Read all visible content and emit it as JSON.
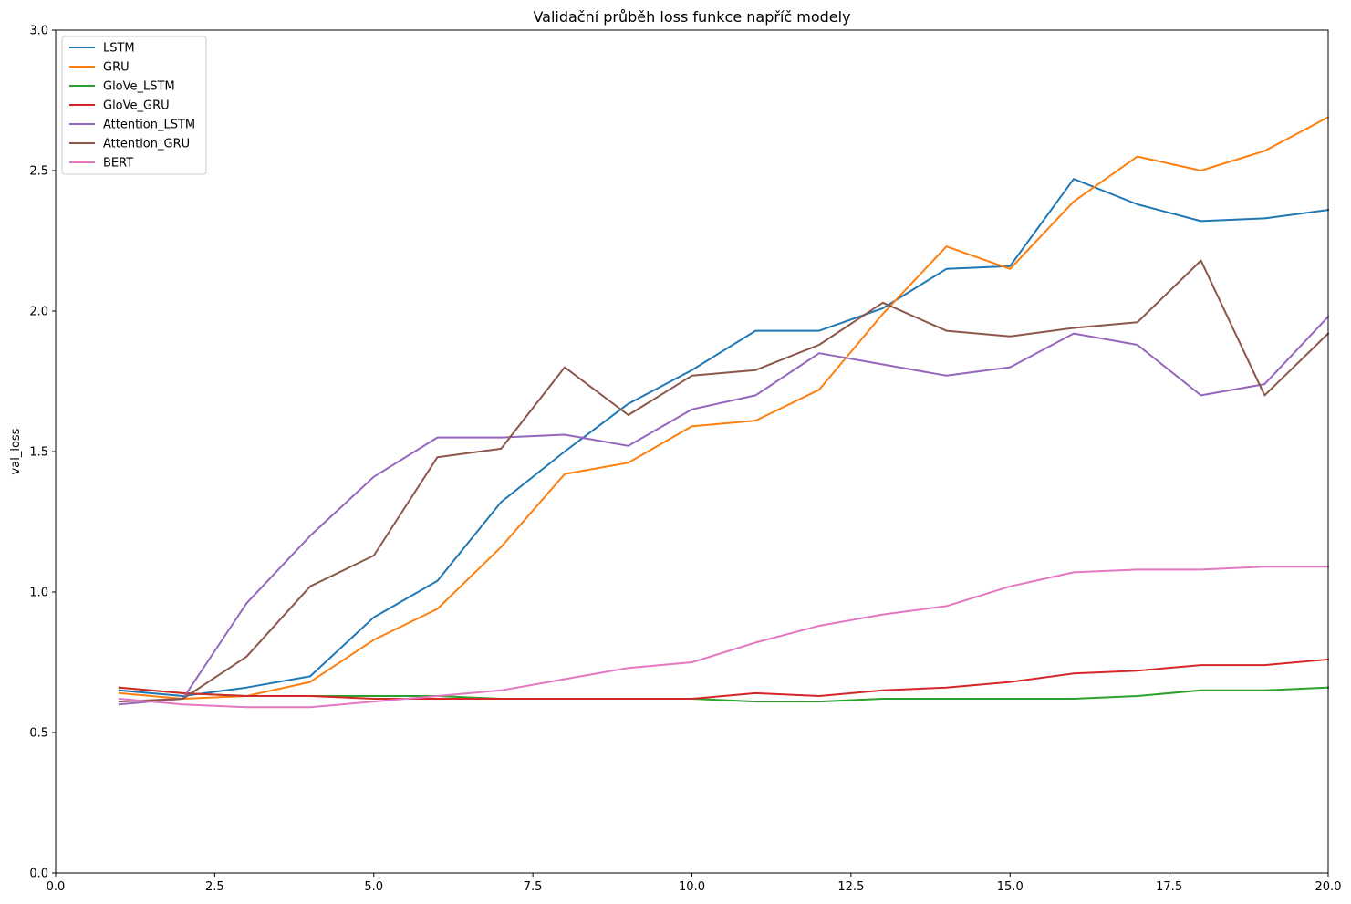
{
  "chart_data": {
    "type": "line",
    "title": "Validační průběh loss funkce napříč modely",
    "xlabel": "",
    "ylabel": "val_loss",
    "xlim": [
      0,
      20
    ],
    "ylim": [
      0,
      3
    ],
    "xticks": [
      {
        "value": 0,
        "label": "0.0"
      },
      {
        "value": 2.5,
        "label": "2.5"
      },
      {
        "value": 5,
        "label": "5.0"
      },
      {
        "value": 7.5,
        "label": "7.5"
      },
      {
        "value": 10,
        "label": "10.0"
      },
      {
        "value": 12.5,
        "label": "12.5"
      },
      {
        "value": 15,
        "label": "15.0"
      },
      {
        "value": 17.5,
        "label": "17.5"
      },
      {
        "value": 20,
        "label": "20.0"
      }
    ],
    "yticks": [
      {
        "value": 0,
        "label": "0.0"
      },
      {
        "value": 0.5,
        "label": "0.5"
      },
      {
        "value": 1,
        "label": "1.0"
      },
      {
        "value": 1.5,
        "label": "1.5"
      },
      {
        "value": 2,
        "label": "2.0"
      },
      {
        "value": 2.5,
        "label": "2.5"
      },
      {
        "value": 3,
        "label": "3.0"
      }
    ],
    "grid": false,
    "legend_position": "top-left",
    "x": [
      1,
      2,
      3,
      4,
      5,
      6,
      7,
      8,
      9,
      10,
      11,
      12,
      13,
      14,
      15,
      16,
      17,
      18,
      19,
      20
    ],
    "series": [
      {
        "name": "LSTM",
        "color": "#1f77b4",
        "values": [
          0.65,
          0.63,
          0.66,
          0.7,
          0.91,
          1.04,
          1.32,
          1.5,
          1.67,
          1.79,
          1.93,
          1.93,
          2.01,
          2.15,
          2.16,
          2.47,
          2.38,
          2.32,
          2.33,
          2.36
        ]
      },
      {
        "name": "GRU",
        "color": "#ff7f0e",
        "values": [
          0.64,
          0.62,
          0.63,
          0.68,
          0.83,
          0.94,
          1.16,
          1.42,
          1.46,
          1.59,
          1.61,
          1.72,
          1.99,
          2.23,
          2.15,
          2.39,
          2.55,
          2.5,
          2.57,
          2.69
        ]
      },
      {
        "name": "GloVe_LSTM",
        "color": "#2ca02c",
        "values": [
          0.66,
          0.64,
          0.63,
          0.63,
          0.63,
          0.63,
          0.62,
          0.62,
          0.62,
          0.62,
          0.61,
          0.61,
          0.62,
          0.62,
          0.62,
          0.62,
          0.63,
          0.65,
          0.65,
          0.66
        ]
      },
      {
        "name": "GloVe_GRU",
        "color": "#d62728",
        "values": [
          0.66,
          0.64,
          0.63,
          0.63,
          0.62,
          0.62,
          0.62,
          0.62,
          0.62,
          0.62,
          0.64,
          0.63,
          0.65,
          0.66,
          0.68,
          0.71,
          0.72,
          0.74,
          0.74,
          0.76
        ]
      },
      {
        "name": "Attention_LSTM",
        "color": "#9467bd",
        "values": [
          0.6,
          0.62,
          0.96,
          1.2,
          1.41,
          1.55,
          1.55,
          1.56,
          1.52,
          1.65,
          1.7,
          1.85,
          1.81,
          1.77,
          1.8,
          1.92,
          1.88,
          1.7,
          1.74,
          1.98
        ]
      },
      {
        "name": "Attention_GRU",
        "color": "#8c564b",
        "values": [
          0.61,
          0.62,
          0.77,
          1.02,
          1.13,
          1.48,
          1.51,
          1.8,
          1.63,
          1.77,
          1.79,
          1.88,
          2.03,
          1.93,
          1.91,
          1.94,
          1.96,
          2.18,
          1.7,
          1.92
        ]
      },
      {
        "name": "BERT",
        "color": "#e377c2",
        "values": [
          0.62,
          0.6,
          0.59,
          0.59,
          0.61,
          0.63,
          0.65,
          0.69,
          0.73,
          0.75,
          0.82,
          0.88,
          0.92,
          0.95,
          1.02,
          1.07,
          1.08,
          1.08,
          1.09,
          1.09
        ]
      }
    ]
  }
}
